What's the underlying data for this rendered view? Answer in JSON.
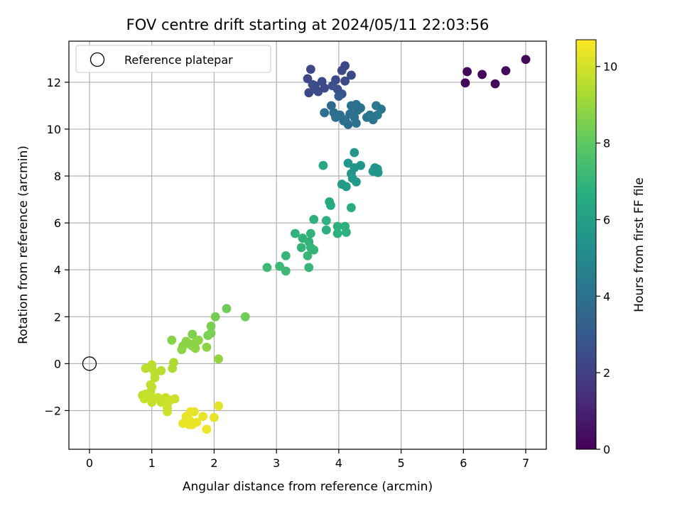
{
  "chart_data": {
    "type": "scatter",
    "title": "FOV centre drift starting at 2024/05/11 22:03:56",
    "xlabel": "Angular distance from reference (arcmin)",
    "ylabel": "Rotation from reference (arcmin)",
    "xlim": [
      -0.33,
      7.33
    ],
    "ylim": [
      -3.65,
      13.75
    ],
    "xticks": [
      0,
      1,
      2,
      3,
      4,
      5,
      6,
      7
    ],
    "yticks": [
      -2,
      0,
      2,
      4,
      6,
      8,
      10,
      12
    ],
    "grid": true,
    "legend": {
      "placement": "upper-left",
      "entries": [
        {
          "label": "Reference platepar",
          "marker": "open-circle"
        }
      ]
    },
    "reference_point": {
      "x": 0,
      "y": 0
    },
    "colorbar": {
      "label": "Hours from first FF file",
      "colormap": "viridis",
      "range": [
        0,
        10.7
      ],
      "ticks": [
        0,
        2,
        4,
        6,
        8,
        10
      ]
    },
    "points": [
      [
        6.03,
        11.97,
        0.2
      ],
      [
        6.06,
        12.45,
        0.2
      ],
      [
        6.3,
        12.33,
        0.2
      ],
      [
        6.51,
        11.93,
        0.2
      ],
      [
        6.68,
        12.49,
        0.2
      ],
      [
        7.0,
        12.97,
        0.2
      ],
      [
        3.55,
        12.55,
        2.3
      ],
      [
        3.5,
        12.15,
        2.3
      ],
      [
        3.52,
        11.55,
        2.3
      ],
      [
        3.62,
        11.85,
        2.4
      ],
      [
        3.67,
        11.6,
        2.4
      ],
      [
        3.73,
        12.03,
        2.4
      ],
      [
        3.77,
        11.75,
        2.4
      ],
      [
        3.95,
        12.1,
        2.4
      ],
      [
        4.05,
        12.5,
        2.4
      ],
      [
        4.1,
        12.7,
        2.3
      ],
      [
        4.1,
        12.05,
        2.4
      ],
      [
        4.2,
        12.3,
        2.4
      ],
      [
        3.98,
        11.7,
        2.6
      ],
      [
        4.05,
        11.5,
        2.8
      ],
      [
        3.9,
        11.85,
        2.6
      ],
      [
        3.58,
        11.9,
        2.6
      ],
      [
        3.62,
        11.7,
        2.5
      ],
      [
        4.0,
        11.4,
        3.0
      ],
      [
        3.88,
        11.0,
        3.6
      ],
      [
        3.92,
        10.7,
        3.8
      ],
      [
        3.95,
        10.5,
        3.9
      ],
      [
        4.1,
        10.4,
        3.8
      ],
      [
        4.15,
        10.2,
        3.8
      ],
      [
        4.18,
        10.65,
        3.9
      ],
      [
        4.3,
        10.8,
        4.0
      ],
      [
        4.2,
        11.0,
        4.0
      ],
      [
        4.35,
        10.9,
        4.0
      ],
      [
        4.25,
        10.5,
        4.0
      ],
      [
        4.28,
        10.25,
        4.0
      ],
      [
        4.45,
        10.5,
        4.1
      ],
      [
        4.5,
        10.6,
        4.2
      ],
      [
        4.55,
        10.4,
        4.2
      ],
      [
        4.6,
        11.0,
        4.3
      ],
      [
        4.62,
        10.6,
        4.3
      ],
      [
        4.68,
        10.85,
        4.2
      ],
      [
        4.28,
        11.05,
        3.9
      ],
      [
        3.77,
        10.7,
        4.0
      ],
      [
        4.08,
        10.35,
        3.9
      ],
      [
        4.02,
        10.6,
        3.9
      ],
      [
        4.25,
        9.0,
        5.6
      ],
      [
        4.15,
        8.55,
        5.6
      ],
      [
        4.25,
        8.35,
        5.6
      ],
      [
        4.35,
        8.45,
        5.6
      ],
      [
        4.2,
        8.1,
        5.6
      ],
      [
        4.22,
        7.9,
        5.7
      ],
      [
        4.28,
        7.75,
        5.7
      ],
      [
        4.05,
        7.65,
        5.8
      ],
      [
        4.12,
        7.55,
        5.8
      ],
      [
        4.55,
        8.2,
        5.6
      ],
      [
        4.58,
        8.35,
        5.6
      ],
      [
        4.62,
        8.3,
        5.6
      ],
      [
        4.63,
        8.15,
        5.6
      ],
      [
        3.75,
        8.45,
        6.3
      ],
      [
        3.85,
        6.9,
        6.5
      ],
      [
        3.87,
        6.75,
        6.5
      ],
      [
        4.2,
        6.65,
        6.6
      ],
      [
        3.6,
        6.15,
        6.8
      ],
      [
        3.8,
        6.1,
        6.8
      ],
      [
        3.98,
        5.85,
        6.8
      ],
      [
        4.1,
        5.85,
        6.8
      ],
      [
        4.12,
        5.6,
        6.8
      ],
      [
        3.8,
        5.7,
        6.8
      ],
      [
        3.98,
        5.55,
        6.8
      ],
      [
        3.55,
        5.55,
        6.9
      ],
      [
        3.3,
        5.55,
        6.9
      ],
      [
        3.42,
        5.35,
        6.9
      ],
      [
        3.52,
        5.2,
        6.9
      ],
      [
        3.4,
        4.95,
        7.0
      ],
      [
        3.55,
        4.95,
        7.0
      ],
      [
        3.6,
        4.85,
        7.0
      ],
      [
        3.5,
        4.6,
        7.1
      ],
      [
        3.15,
        4.6,
        7.1
      ],
      [
        3.52,
        4.1,
        7.1
      ],
      [
        3.05,
        4.15,
        7.2
      ],
      [
        2.85,
        4.1,
        7.2
      ],
      [
        3.15,
        3.95,
        7.2
      ],
      [
        2.2,
        2.35,
        8.3
      ],
      [
        2.5,
        2.0,
        8.3
      ],
      [
        2.02,
        2.0,
        8.4
      ],
      [
        1.95,
        1.6,
        8.5
      ],
      [
        1.95,
        1.3,
        8.5
      ],
      [
        1.9,
        1.2,
        8.5
      ],
      [
        1.32,
        1.0,
        8.7
      ],
      [
        1.65,
        1.25,
        8.6
      ],
      [
        1.55,
        0.95,
        8.7
      ],
      [
        1.6,
        0.85,
        8.8
      ],
      [
        1.75,
        1.0,
        8.8
      ],
      [
        1.65,
        0.75,
        8.8
      ],
      [
        1.7,
        0.9,
        8.8
      ],
      [
        1.5,
        0.75,
        8.8
      ],
      [
        1.48,
        0.6,
        8.8
      ],
      [
        1.88,
        0.7,
        8.8
      ],
      [
        1.7,
        0.65,
        8.8
      ],
      [
        2.07,
        0.2,
        8.9
      ],
      [
        1.35,
        0.05,
        9.3
      ],
      [
        1.33,
        -0.2,
        9.4
      ],
      [
        1.0,
        -0.05,
        9.6
      ],
      [
        0.9,
        -0.2,
        9.6
      ],
      [
        1.0,
        -0.2,
        9.6
      ],
      [
        1.15,
        -0.3,
        9.6
      ],
      [
        1.05,
        -0.4,
        9.6
      ],
      [
        1.05,
        -0.6,
        9.6
      ],
      [
        0.98,
        -0.9,
        9.7
      ],
      [
        1.0,
        -1.0,
        9.7
      ],
      [
        0.98,
        -1.2,
        9.7
      ],
      [
        0.9,
        -1.3,
        9.7
      ],
      [
        0.85,
        -1.35,
        9.7
      ],
      [
        0.88,
        -1.5,
        9.8
      ],
      [
        1.0,
        -1.45,
        9.8
      ],
      [
        1.0,
        -1.65,
        9.8
      ],
      [
        1.1,
        -1.45,
        9.8
      ],
      [
        1.15,
        -1.55,
        9.8
      ],
      [
        1.22,
        -1.45,
        9.8
      ],
      [
        1.15,
        -1.65,
        9.8
      ],
      [
        1.25,
        -1.7,
        9.8
      ],
      [
        1.3,
        -1.55,
        9.9
      ],
      [
        1.37,
        -1.5,
        9.9
      ],
      [
        1.25,
        -1.9,
        9.9
      ],
      [
        1.25,
        -2.05,
        9.9
      ],
      [
        1.62,
        -2.05,
        10.3
      ],
      [
        1.68,
        -2.05,
        10.3
      ],
      [
        1.82,
        -2.25,
        10.3
      ],
      [
        1.55,
        -2.25,
        10.3
      ],
      [
        2.0,
        -2.3,
        10.3
      ],
      [
        1.6,
        -2.4,
        10.4
      ],
      [
        1.72,
        -2.5,
        10.4
      ],
      [
        1.5,
        -2.55,
        10.4
      ],
      [
        1.6,
        -2.6,
        10.4
      ],
      [
        1.65,
        -2.6,
        10.4
      ],
      [
        1.88,
        -2.8,
        10.5
      ],
      [
        2.07,
        -1.8,
        10.2
      ]
    ]
  }
}
